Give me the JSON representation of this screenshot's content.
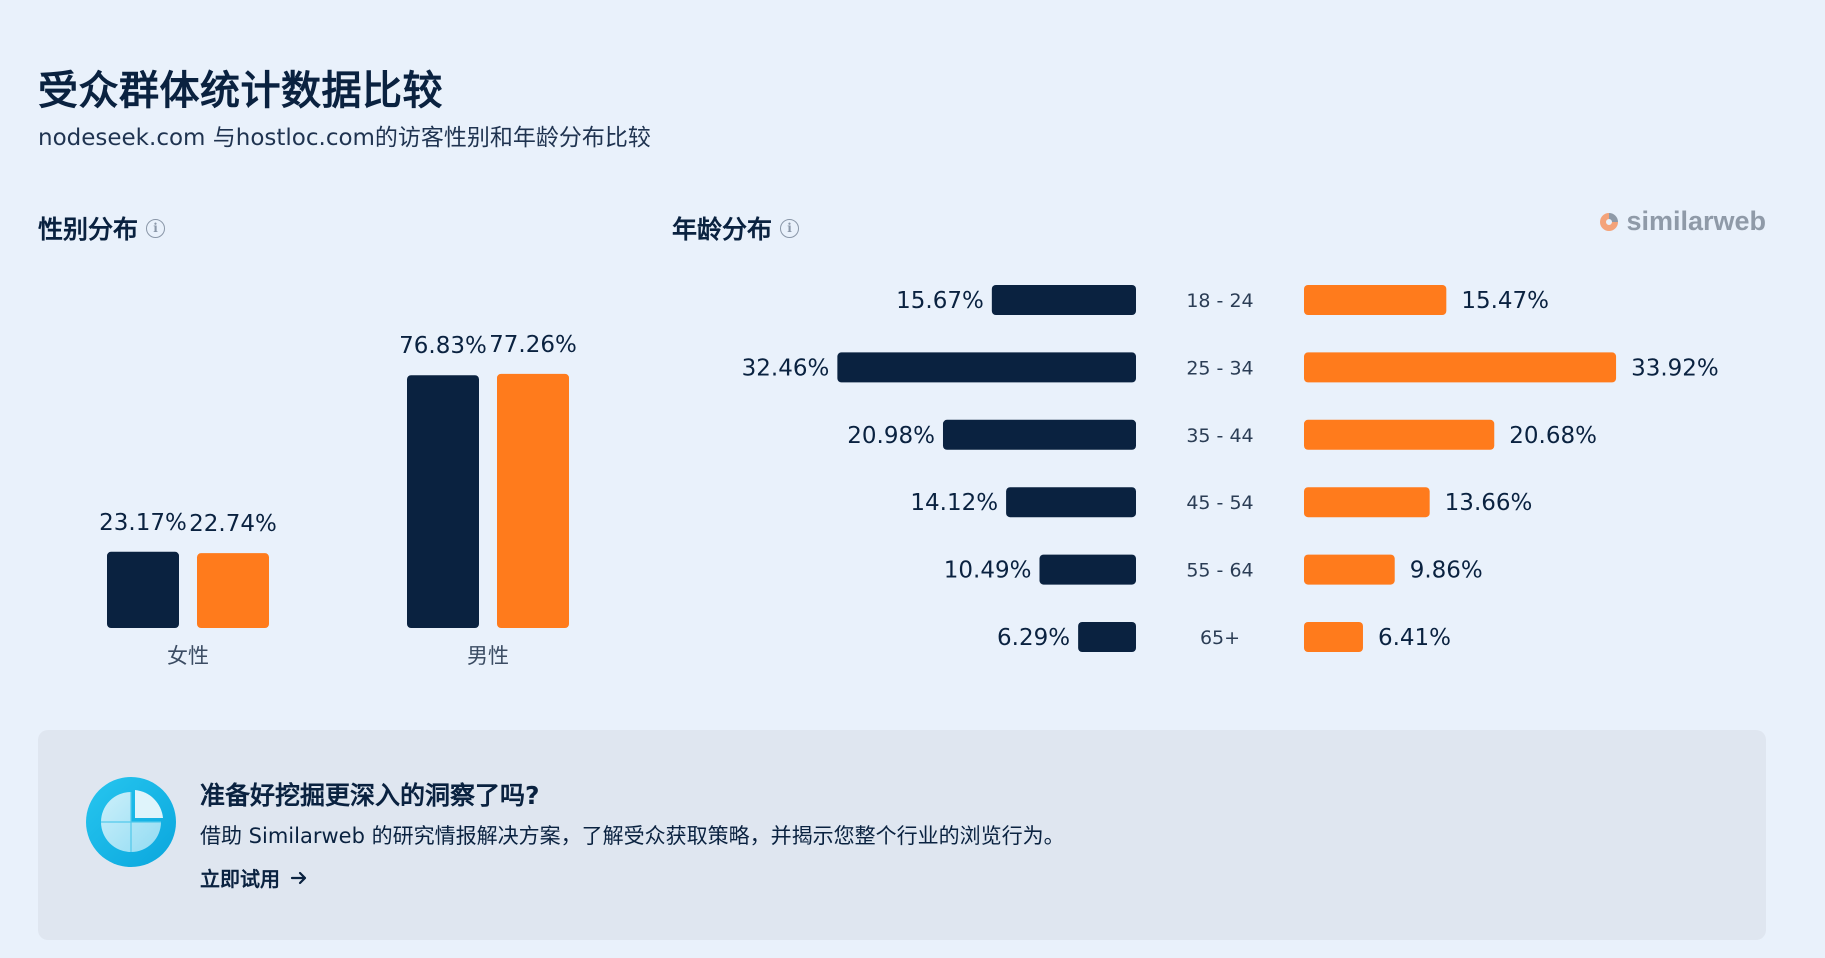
{
  "page": {
    "title": "受众群体统计数据比较",
    "subtitle": "nodeseek.com 与hostloc.com的访客性别和年龄分布比较"
  },
  "gender_section": {
    "title": "性别分布",
    "icon": "info-icon"
  },
  "age_section": {
    "title": "年龄分布",
    "icon": "info-icon"
  },
  "brand": {
    "name": "similarweb",
    "icon": "similarweb-logo-icon"
  },
  "colors": {
    "series1": "#0a2240",
    "series2": "#ff7b1c",
    "background": "#e9f1fb",
    "cta_background": "#dfe6f0"
  },
  "chart_data": [
    {
      "type": "bar",
      "categories": [
        "女性",
        "男性"
      ],
      "series": [
        {
          "values": [
            23.17,
            76.83
          ],
          "labels": [
            "23.17%",
            "76.83%"
          ]
        },
        {
          "values": [
            22.74,
            77.26
          ],
          "labels": [
            "22.74%",
            "77.26%"
          ]
        }
      ],
      "ylim": [
        0,
        100
      ]
    },
    {
      "type": "bar",
      "orientation": "horizontal-butterfly",
      "categories": [
        "18 - 24",
        "25 - 34",
        "35 - 44",
        "45 - 54",
        "55 - 64",
        "65+"
      ],
      "series": [
        {
          "values": [
            15.67,
            32.46,
            20.98,
            14.12,
            10.49,
            6.29
          ],
          "labels": [
            "15.67%",
            "32.46%",
            "20.98%",
            "14.12%",
            "10.49%",
            "6.29%"
          ]
        },
        {
          "values": [
            15.47,
            33.92,
            20.68,
            13.66,
            9.86,
            6.41
          ],
          "labels": [
            "15.47%",
            "33.92%",
            "20.68%",
            "13.66%",
            "9.86%",
            "6.41%"
          ]
        }
      ]
    }
  ],
  "cta": {
    "heading": "准备好挖掘更深入的洞察了吗?",
    "text": "借助 Similarweb 的研究情报解决方案，了解受众获取策略，并揭示您整个行业的浏览行为。",
    "link_label": "立即试用",
    "link_icon": "arrow-right-icon",
    "icon": "pie-chart-icon"
  }
}
